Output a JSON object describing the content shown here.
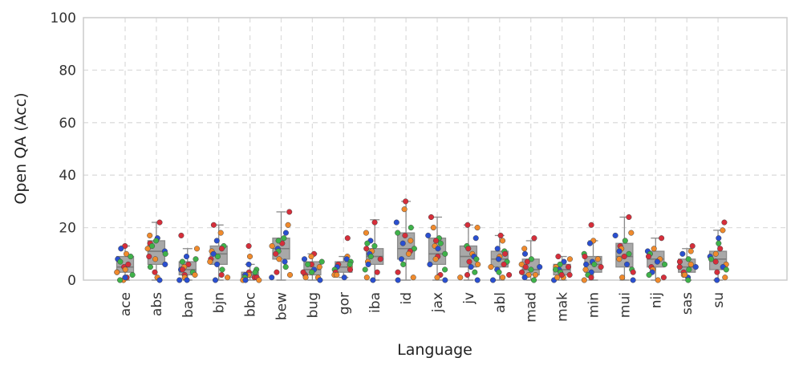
{
  "chart_data": {
    "type": "box",
    "xlabel": "Language",
    "ylabel": "Open QA (Acc)",
    "ylim": [
      0,
      100
    ],
    "yticks": [
      0,
      20,
      40,
      60,
      80,
      100
    ],
    "grid": true,
    "categories": [
      "ace",
      "abs",
      "ban",
      "bjn",
      "bbc",
      "bew",
      "bug",
      "gor",
      "iba",
      "id",
      "jax",
      "jv",
      "abl",
      "mad",
      "mak",
      "min",
      "mui",
      "nij",
      "sas",
      "su"
    ],
    "boxes": [
      {
        "q1": 3,
        "median": 5,
        "q3": 9,
        "whisker_low": 0,
        "whisker_high": 13
      },
      {
        "q1": 6,
        "median": 11,
        "q3": 15,
        "whisker_low": 0,
        "whisker_high": 22
      },
      {
        "q1": 2,
        "median": 4,
        "q3": 7,
        "whisker_low": 0,
        "whisker_high": 12
      },
      {
        "q1": 6,
        "median": 10,
        "q3": 13,
        "whisker_low": 0,
        "whisker_high": 21
      },
      {
        "q1": 1,
        "median": 2,
        "q3": 3,
        "whisker_low": 0,
        "whisker_high": 6
      },
      {
        "q1": 8,
        "median": 12,
        "q3": 16,
        "whisker_low": 0,
        "whisker_high": 26
      },
      {
        "q1": 2,
        "median": 4,
        "q3": 7,
        "whisker_low": 0,
        "whisker_high": 10
      },
      {
        "q1": 3,
        "median": 5,
        "q3": 7,
        "whisker_low": 1,
        "whisker_high": 9
      },
      {
        "q1": 6,
        "median": 9,
        "q3": 12,
        "whisker_low": 0,
        "whisker_high": 23
      },
      {
        "q1": 8,
        "median": 12,
        "q3": 18,
        "whisker_low": 0,
        "whisker_high": 30
      },
      {
        "q1": 6,
        "median": 10,
        "q3": 16,
        "whisker_low": 0,
        "whisker_high": 24
      },
      {
        "q1": 5,
        "median": 9,
        "q3": 13,
        "whisker_low": 0,
        "whisker_high": 21
      },
      {
        "q1": 5,
        "median": 8,
        "q3": 11,
        "whisker_low": 0,
        "whisker_high": 17
      },
      {
        "q1": 2,
        "median": 4,
        "q3": 8,
        "whisker_low": 0,
        "whisker_high": 15
      },
      {
        "q1": 2,
        "median": 4,
        "q3": 6,
        "whisker_low": 0,
        "whisker_high": 9
      },
      {
        "q1": 3,
        "median": 6,
        "q3": 9,
        "whisker_low": 0,
        "whisker_high": 15
      },
      {
        "q1": 5,
        "median": 9,
        "q3": 14,
        "whisker_low": 0,
        "whisker_high": 24
      },
      {
        "q1": 5,
        "median": 8,
        "q3": 11,
        "whisker_low": 0,
        "whisker_high": 16
      },
      {
        "q1": 3,
        "median": 5,
        "q3": 8,
        "whisker_low": 0,
        "whisker_high": 12
      },
      {
        "q1": 4,
        "median": 8,
        "q3": 11,
        "whisker_low": 0,
        "whisker_high": 19
      }
    ],
    "points": [
      [
        13,
        10,
        8,
        7,
        5,
        4,
        3,
        2,
        1,
        0,
        12,
        9,
        6,
        3,
        1,
        0
      ],
      [
        22,
        17,
        16,
        15,
        14,
        12,
        11,
        10,
        9,
        8,
        6,
        5,
        3,
        1,
        0,
        13
      ],
      [
        17,
        12,
        9,
        7,
        6,
        5,
        4,
        3,
        2,
        1,
        0,
        8,
        4,
        2,
        0
      ],
      [
        21,
        18,
        15,
        13,
        12,
        11,
        10,
        9,
        8,
        7,
        6,
        4,
        2,
        1,
        0
      ],
      [
        13,
        9,
        6,
        4,
        3,
        2,
        2,
        1,
        1,
        0,
        0,
        3,
        1,
        0
      ],
      [
        26,
        21,
        18,
        16,
        14,
        13,
        12,
        11,
        10,
        8,
        7,
        5,
        3,
        2,
        1,
        15
      ],
      [
        10,
        9,
        8,
        7,
        6,
        5,
        4,
        3,
        2,
        1,
        0,
        6,
        3,
        1
      ],
      [
        16,
        9,
        8,
        7,
        6,
        5,
        5,
        4,
        3,
        2,
        1,
        6,
        4,
        2
      ],
      [
        22,
        18,
        15,
        13,
        12,
        11,
        10,
        9,
        8,
        7,
        6,
        4,
        3,
        1,
        0,
        14
      ],
      [
        30,
        27,
        22,
        20,
        17,
        15,
        14,
        12,
        11,
        10,
        8,
        6,
        3,
        1,
        0,
        18
      ],
      [
        24,
        20,
        17,
        16,
        15,
        13,
        12,
        10,
        9,
        8,
        6,
        4,
        2,
        1,
        0,
        14
      ],
      [
        21,
        20,
        16,
        13,
        12,
        10,
        9,
        8,
        7,
        6,
        5,
        3,
        2,
        1,
        0
      ],
      [
        17,
        15,
        12,
        11,
        10,
        9,
        8,
        7,
        6,
        5,
        4,
        3,
        2,
        1,
        0
      ],
      [
        16,
        12,
        10,
        8,
        7,
        6,
        5,
        4,
        3,
        2,
        1,
        0,
        5,
        2
      ],
      [
        9,
        8,
        7,
        6,
        5,
        5,
        4,
        3,
        2,
        1,
        0,
        4,
        2,
        1
      ],
      [
        21,
        15,
        14,
        10,
        9,
        8,
        7,
        6,
        5,
        4,
        3,
        2,
        1,
        0,
        6
      ],
      [
        24,
        18,
        17,
        15,
        13,
        12,
        11,
        10,
        9,
        8,
        6,
        4,
        3,
        1,
        0
      ],
      [
        16,
        12,
        11,
        10,
        9,
        8,
        7,
        6,
        5,
        4,
        3,
        2,
        1,
        0
      ],
      [
        13,
        11,
        10,
        8,
        7,
        6,
        5,
        4,
        3,
        2,
        1,
        0,
        5,
        2
      ],
      [
        22,
        19,
        16,
        14,
        12,
        10,
        9,
        8,
        7,
        6,
        5,
        4,
        3,
        1,
        0
      ]
    ],
    "point_colors": [
      "#d62e3a",
      "#f08a2c",
      "#2a4fd0",
      "#3fb24a"
    ],
    "box_fill": "#a8a8a8",
    "box_stroke": "#8a8a8a"
  }
}
